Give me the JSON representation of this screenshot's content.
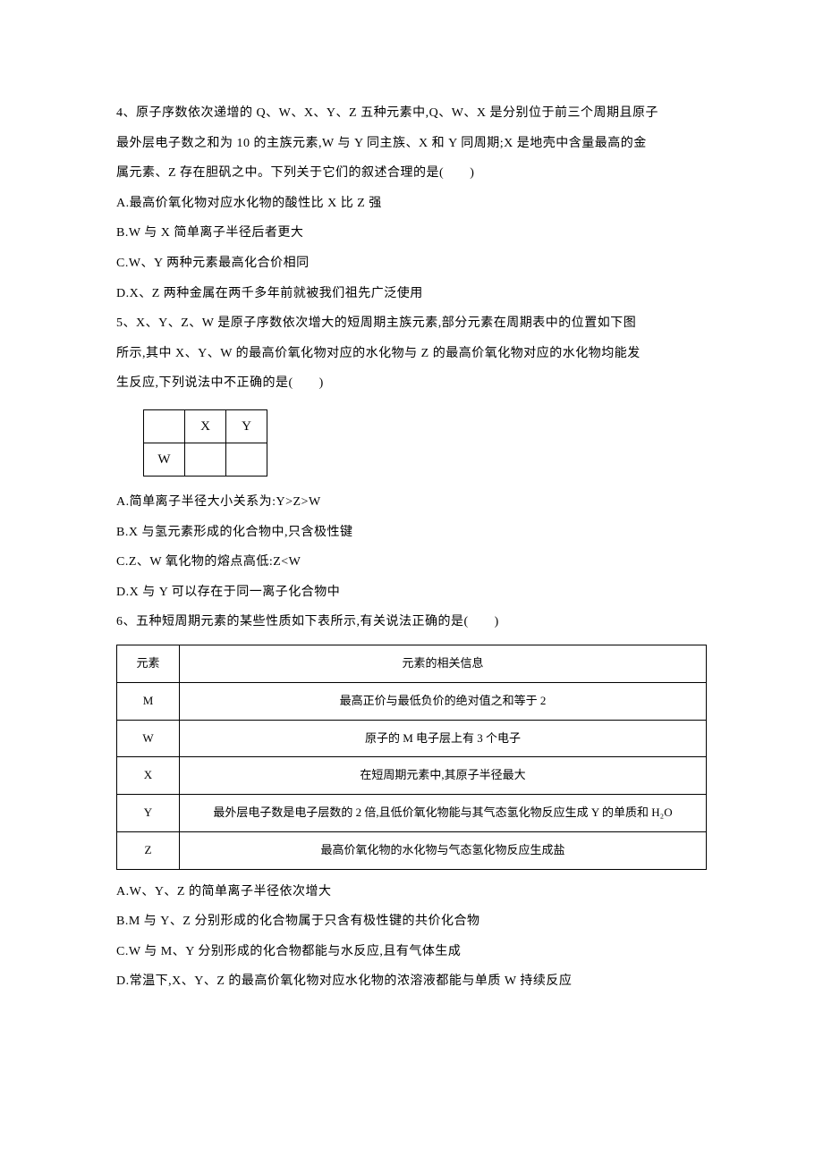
{
  "q4": {
    "line1": "4、原子序数依次递增的 Q、W、X、Y、Z 五种元素中,Q、W、X 是分别位于前三个周期且原子",
    "line2": "最外层电子数之和为 10 的主族元素,W 与 Y 同主族、X 和 Y 同周期;X 是地壳中含量最高的金",
    "line3": "属元素、Z 存在胆矾之中。下列关于它们的叙述合理的是(　　)",
    "optA": "A.最高价氧化物对应水化物的酸性比 X 比 Z 强",
    "optB": "B.W 与 X 简单离子半径后者更大",
    "optC": "C.W、Y 两种元素最高化合价相同",
    "optD": "D.X、Z 两种金属在两千多年前就被我们祖先广泛使用"
  },
  "q5": {
    "line1": "5、X、Y、Z、W 是原子序数依次增大的短周期主族元素,部分元素在周期表中的位置如下图",
    "line2": "所示,其中 X、Y、W 的最高价氧化物对应的水化物与 Z 的最高价氧化物对应的水化物均能发",
    "line3": "生反应,下列说法中不正确的是(　　)",
    "table": {
      "r1c1": "",
      "r1c2": "X",
      "r1c3": "Y",
      "r2c1": "W",
      "r2c2": "",
      "r2c3": ""
    },
    "optA": "A.简单离子半径大小关系为:Y>Z>W",
    "optB": "B.X 与氢元素形成的化合物中,只含极性键",
    "optC": "C.Z、W 氧化物的熔点高低:Z<W",
    "optD": "D.X 与 Y 可以存在于同一离子化合物中"
  },
  "q6": {
    "stem": "6、五种短周期元素的某些性质如下表所示,有关说法正确的是(　　)",
    "header": {
      "c1": "元素",
      "c2": "元素的相关信息"
    },
    "rows": [
      {
        "c1": "M",
        "c2": "最高正价与最低负价的绝对值之和等于 2"
      },
      {
        "c1": "W",
        "c2": "原子的 M 电子层上有 3 个电子"
      },
      {
        "c1": "X",
        "c2": "在短周期元素中,其原子半径最大"
      },
      {
        "c1": "Y",
        "c2": "最外层电子数是电子层数的 2 倍,且低价氧化物能与其气态氢化物反应生成 Y 的单质和 H₂O"
      },
      {
        "c1": "Z",
        "c2": "最高价氧化物的水化物与气态氢化物反应生成盐"
      }
    ],
    "optA": "A.W、Y、Z 的简单离子半径依次增大",
    "optB": "B.M 与 Y、Z 分别形成的化合物属于只含有极性键的共价化合物",
    "optC": "C.W 与 M、Y 分别形成的化合物都能与水反应,且有气体生成",
    "optD": "D.常温下,X、Y、Z 的最高价氧化物对应水化物的浓溶液都能与单质 W 持续反应"
  }
}
